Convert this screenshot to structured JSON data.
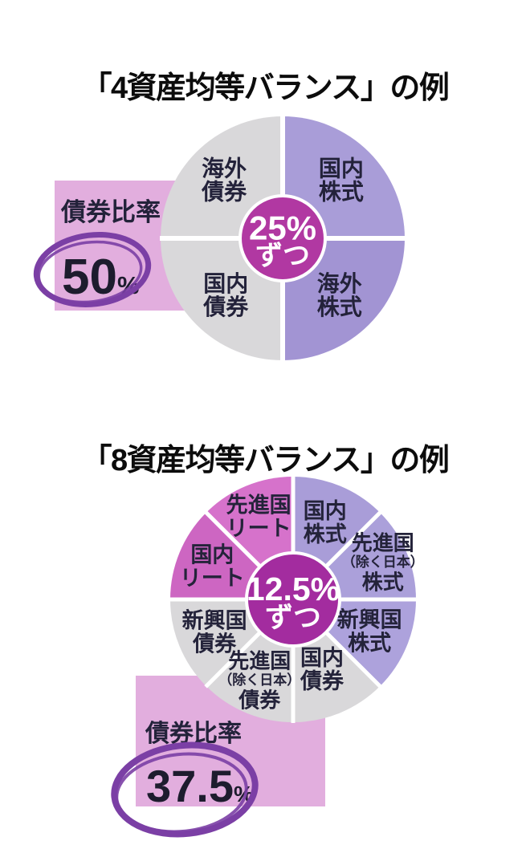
{
  "page": {
    "background": "#ffffff",
    "title_color": "#0c0c0c"
  },
  "chart_data": [
    {
      "type": "pie",
      "title": "「4資産均等バランス」の例",
      "center_note": "25%ずつ",
      "center": {
        "lines": [
          {
            "t": "25%",
            "s": 42
          },
          {
            "t": "ずつ",
            "s": 34
          }
        ],
        "dy": [
          -13,
          22
        ],
        "color": "#b138a2",
        "r": 53
      },
      "label_color": "#23223a",
      "start_angle": 0,
      "layout": {
        "R": 152,
        "gap": 6
      },
      "segments": [
        {
          "label": "国内株式",
          "value": 25,
          "color": "#a99dd8",
          "label_r": 103,
          "lines": [
            {
              "t": "国内",
              "s": 28
            },
            {
              "t": "株式",
              "s": 28
            }
          ]
        },
        {
          "label": "海外株式",
          "value": 25,
          "color": "#a294d3",
          "label_r": 100,
          "lines": [
            {
              "t": "海外",
              "s": 28
            },
            {
              "t": "株式",
              "s": 28
            }
          ]
        },
        {
          "label": "国内債券",
          "value": 25,
          "color": "#d9d8da",
          "label_r": 100,
          "lines": [
            {
              "t": "国内",
              "s": 28
            },
            {
              "t": "債券",
              "s": 28
            }
          ]
        },
        {
          "label": "海外債券",
          "value": 25,
          "color": "#d9d8da",
          "label_r": 103,
          "lines": [
            {
              "t": "海外",
              "s": 28
            },
            {
              "t": "債券",
              "s": 28
            }
          ]
        }
      ],
      "callout": {
        "label": "債券比率",
        "value": "50",
        "suffix": "%",
        "box_color": "#e2aede",
        "marker_color": "#7b3fa5"
      }
    },
    {
      "type": "pie",
      "title": "「8資産均等バランス」の例",
      "center_note": "12.5%ずつ",
      "center": {
        "lines": [
          {
            "t": "12.5%",
            "s": 41
          },
          {
            "t": "ずつ",
            "s": 35
          }
        ],
        "dy": [
          -13,
          23
        ],
        "color": "#a32c9f",
        "r": 58
      },
      "label_color": "#24233a",
      "start_angle": 0,
      "layout": {
        "R": 153,
        "gap": 5
      },
      "segments": [
        {
          "label": "国内株式",
          "value": 12.5,
          "color": "#a99dd8",
          "label_r": 104,
          "lines": [
            {
              "t": "国内",
              "s": 27
            },
            {
              "t": "株式",
              "s": 27
            }
          ]
        },
        {
          "label": "先進国（除く日本）株式",
          "value": 12.5,
          "color": "#aba0da",
          "label_r": 121,
          "lines": [
            {
              "t": "先進国",
              "s": 26
            },
            {
              "t": "（除く日本）",
              "s": 17
            },
            {
              "t": "株式",
              "s": 26
            }
          ]
        },
        {
          "label": "新興国株式",
          "value": 12.5,
          "color": "#ada2dc",
          "label_r": 103,
          "lines": [
            {
              "t": "新興国",
              "s": 27
            },
            {
              "t": "株式",
              "s": 27
            }
          ]
        },
        {
          "label": "国内債券",
          "value": 12.5,
          "color": "#d9d8da",
          "label_r": 94,
          "lines": [
            {
              "t": "国内",
              "s": 27
            },
            {
              "t": "債券",
              "s": 27
            }
          ]
        },
        {
          "label": "先進国（除く日本）債券",
          "value": 12.5,
          "color": "#d9d8da",
          "label_r": 109,
          "lines": [
            {
              "t": "先進国",
              "s": 26
            },
            {
              "t": "（除く日本）",
              "s": 17
            },
            {
              "t": "債券",
              "s": 26
            }
          ]
        },
        {
          "label": "新興国債券",
          "value": 12.5,
          "color": "#d9d8da",
          "label_r": 106,
          "lines": [
            {
              "t": "新興国",
              "s": 27
            },
            {
              "t": "債券",
              "s": 27
            }
          ]
        },
        {
          "label": "国内リート",
          "value": 12.5,
          "color": "#cd66c2",
          "label_r": 109,
          "lines": [
            {
              "t": "国内",
              "s": 27
            },
            {
              "t": "リート",
              "s": 27
            }
          ]
        },
        {
          "label": "先進国リート",
          "value": 12.5,
          "color": "#d672cb",
          "label_r": 112,
          "lines": [
            {
              "t": "先進国",
              "s": 27
            },
            {
              "t": "リート",
              "s": 27
            }
          ]
        }
      ],
      "callout": {
        "label": "債券比率",
        "value": "37.5",
        "suffix": "%",
        "box_color": "#e2aede",
        "marker_color": "#7b3fa5"
      }
    }
  ]
}
